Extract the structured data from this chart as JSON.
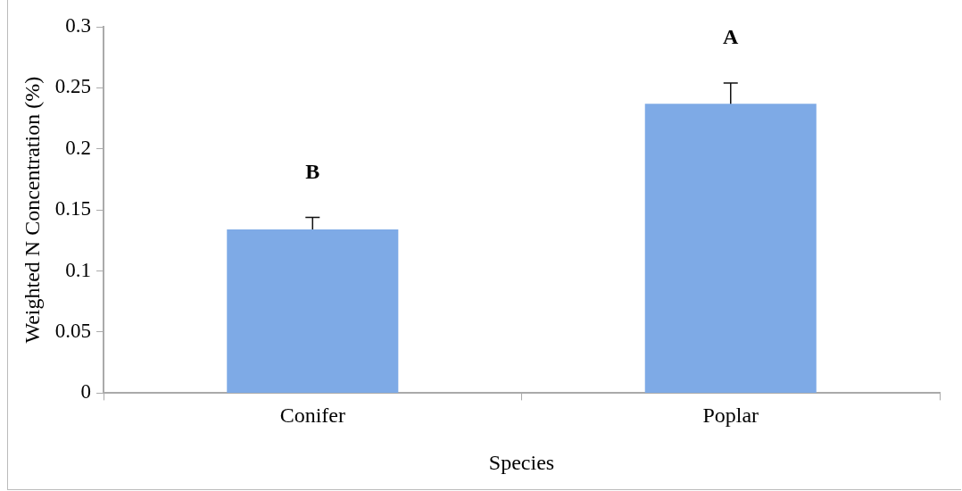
{
  "chart_data": {
    "type": "bar",
    "xlabel": "Species",
    "ylabel": "Weighted N Concentration (%)",
    "categories": [
      "Conifer",
      "Poplar"
    ],
    "values": [
      0.134,
      0.237
    ],
    "errors": [
      0.01,
      0.017
    ],
    "color": "#7eaae6",
    "ylim": [
      0,
      0.3
    ],
    "yticks": [
      0,
      0.05,
      0.1,
      0.15,
      0.2,
      0.25,
      0.3
    ],
    "annotations": [
      "B",
      "A"
    ],
    "grid": false,
    "legend": false
  }
}
